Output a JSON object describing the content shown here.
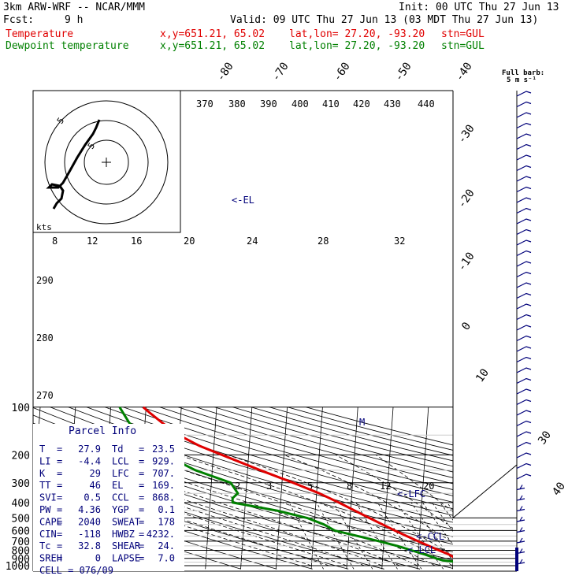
{
  "header": {
    "model": "3km ARW-WRF -- NCAR/MMM",
    "init": "Init: 00 UTC Thu 27 Jun 13",
    "fcst_label": "Fcst:",
    "fcst_value": "9 h",
    "valid": "Valid: 09 UTC Thu 27 Jun 13 (03 MDT Thu 27 Jun 13)",
    "temp_label": "Temperature",
    "dew_label": "Dewpoint temperature",
    "xy": "x,y=651.21, 65.02",
    "latlon": "lat,lon= 27.20, -93.20",
    "stn": "stn=GUL"
  },
  "barb_title": "Full barb:",
  "barb_unit": "5 m s⁻¹",
  "hodo_labels": [
    "5",
    "5"
  ],
  "hodo_unit": "kts",
  "chart_data": {
    "type": "line",
    "y_pressure_levels": [
      100,
      200,
      300,
      400,
      500,
      600,
      700,
      800,
      900,
      1000
    ],
    "pressure_tick_labels": [
      "100",
      "200",
      "300",
      "400",
      "500",
      "600",
      "700",
      "800",
      "900",
      "1000"
    ],
    "pressure_range_hpa": [
      100,
      1050
    ],
    "skewed_isotherm_labels_c": [
      "-80",
      "-70",
      "-60",
      "-50",
      "-40",
      "-30",
      "-20",
      "-10",
      "0",
      "10",
      "30",
      "40"
    ],
    "theta_e_labels_k": [
      "370",
      "380",
      "390",
      "400",
      "410",
      "420",
      "430",
      "440"
    ],
    "theta_labels_left_k": [
      "290",
      "280",
      "270"
    ],
    "mixing_ratio_labels_upper": [
      "8",
      "12",
      "16",
      "20",
      "24",
      "28",
      "32"
    ],
    "mixing_ratio_labels_lower": [
      "2",
      "3",
      "5",
      "8",
      "12",
      "20"
    ],
    "level_markers": [
      "EL",
      "M",
      "LFC",
      "CCL",
      "LCL"
    ],
    "series": [
      {
        "name": "Temperature",
        "color": "#e00000",
        "points_p_t": [
          [
            1000,
            27.9
          ],
          [
            975,
            25.5
          ],
          [
            950,
            23.4
          ],
          [
            925,
            21.8
          ],
          [
            900,
            20.8
          ],
          [
            850,
            18.7
          ],
          [
            800,
            15.8
          ],
          [
            750,
            12.8
          ],
          [
            700,
            9.6
          ],
          [
            650,
            6.3
          ],
          [
            600,
            2.9
          ],
          [
            550,
            -0.7
          ],
          [
            500,
            -4.6
          ],
          [
            450,
            -8.8
          ],
          [
            400,
            -13.5
          ],
          [
            350,
            -19.2
          ],
          [
            300,
            -26.8
          ],
          [
            250,
            -36.4
          ],
          [
            200,
            -47.6
          ],
          [
            175,
            -54.2
          ],
          [
            150,
            -60.2
          ],
          [
            125,
            -65.2
          ],
          [
            110,
            -68.5
          ],
          [
            100,
            -70.8
          ]
        ]
      },
      {
        "name": "Dewpoint temperature",
        "color": "#008000",
        "points_p_t": [
          [
            1000,
            23.5
          ],
          [
            975,
            22.3
          ],
          [
            950,
            21.6
          ],
          [
            925,
            17.0
          ],
          [
            900,
            15.2
          ],
          [
            850,
            11.9
          ],
          [
            800,
            8.0
          ],
          [
            750,
            3.9
          ],
          [
            700,
            -1.5
          ],
          [
            650,
            -7.6
          ],
          [
            600,
            -14.1
          ],
          [
            550,
            -17.3
          ],
          [
            500,
            -22.2
          ],
          [
            450,
            -30.8
          ],
          [
            400,
            -43.6
          ],
          [
            375,
            -43.7
          ],
          [
            350,
            -42.3
          ],
          [
            300,
            -44.5
          ],
          [
            250,
            -54.8
          ],
          [
            200,
            -63.7
          ],
          [
            175,
            -67.4
          ],
          [
            150,
            -71.2
          ],
          [
            125,
            -74.5
          ],
          [
            100,
            -77.5
          ]
        ]
      }
    ]
  },
  "parcel_info": {
    "title": "Parcel Info",
    "rows": [
      [
        [
          "T",
          "=",
          "27.9"
        ],
        [
          "Td",
          "=",
          "23.5"
        ]
      ],
      [
        [
          "LI",
          "=",
          "-4.4"
        ],
        [
          "LCL",
          "=",
          "929."
        ]
      ],
      [
        [
          "K",
          "=",
          "29"
        ],
        [
          "LFC",
          "=",
          "707."
        ]
      ],
      [
        [
          "TT",
          "=",
          "46"
        ],
        [
          "EL",
          "=",
          "169."
        ]
      ],
      [
        [
          "SVI",
          "=",
          "0.5"
        ],
        [
          "CCL",
          "=",
          "868."
        ]
      ],
      [
        [
          "PW",
          "=",
          "4.36"
        ],
        [
          "YGP",
          "=",
          "0.1"
        ]
      ],
      [
        [
          "CAPE",
          "=",
          "2040"
        ],
        [
          "SWEAT",
          "=",
          "178"
        ]
      ],
      [
        [
          "CIN",
          "=",
          "-118"
        ],
        [
          "HWBZ",
          "=",
          "4232."
        ]
      ],
      [
        [
          "Tc",
          "=",
          "32.8"
        ],
        [
          "SHEAR",
          "=",
          "24."
        ]
      ],
      [
        [
          "SREH",
          "=",
          "0"
        ],
        [
          "LAPSE",
          "=",
          "7.0"
        ]
      ]
    ],
    "cell": "CELL = 076/09"
  }
}
